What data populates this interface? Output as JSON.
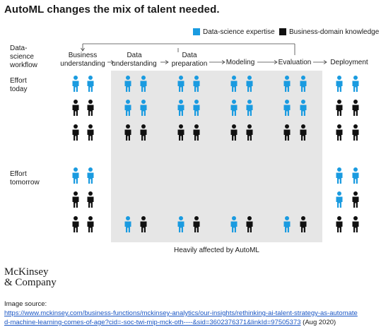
{
  "title": "AutoML changes the mix of talent needed.",
  "legend": {
    "items": [
      {
        "label": "Data-science expertise",
        "color": "#1a9be0"
      },
      {
        "label": "Business-domain knowledge",
        "color": "#111111"
      }
    ]
  },
  "row_labels": {
    "workflow": "Data-\nscience\nworkflow",
    "today": "Effort\ntoday",
    "tomorrow": "Effort\ntomorrow"
  },
  "stages": [
    {
      "label": "Business\nunderstanding"
    },
    {
      "label": "Data\nunderstanding"
    },
    {
      "label": "Data\npreparation"
    },
    {
      "label": "Modeling"
    },
    {
      "label": "Evaluation"
    },
    {
      "label": "Deployment"
    }
  ],
  "icons": {
    "person": "person-icon",
    "colors": {
      "D": "#1a9be0",
      "B": "#111111"
    },
    "today": [
      [
        "D",
        "D",
        "B",
        "B",
        "B",
        "B"
      ],
      [
        "D",
        "D",
        "D",
        "D",
        "B",
        "B"
      ],
      [
        "D",
        "D",
        "D",
        "D",
        "B",
        "B"
      ],
      [
        "D",
        "D",
        "D",
        "D",
        "B",
        "B"
      ],
      [
        "D",
        "D",
        "D",
        "D",
        "B",
        "B"
      ],
      [
        "D",
        "D",
        "B",
        "B",
        "B",
        "B"
      ]
    ],
    "tomorrow": [
      [
        "D",
        "D",
        "B",
        "B",
        "B",
        "B"
      ],
      [
        "D",
        "B"
      ],
      [
        "D",
        "B"
      ],
      [
        "D",
        "B"
      ],
      [
        "D",
        "B"
      ],
      [
        "D",
        "D",
        "D",
        "B",
        "B",
        "B"
      ]
    ]
  },
  "shaded_caption": "Heavily affected by AutoML",
  "logo": {
    "line1": "McKinsey",
    "line2": "& Company"
  },
  "source": {
    "label": "Image source:",
    "url_line1": "https://www.mckinsey.com/business-functions/mckinsey-analytics/our-insights/rethinking-ai-talent-strategy-as-automate",
    "url_line2": "d-machine-learning-comes-of-age?cid=-soc-twi-mip-mck-oth----&sid=3602376371&linkId=97505373",
    "date": " (Aug 2020)"
  }
}
